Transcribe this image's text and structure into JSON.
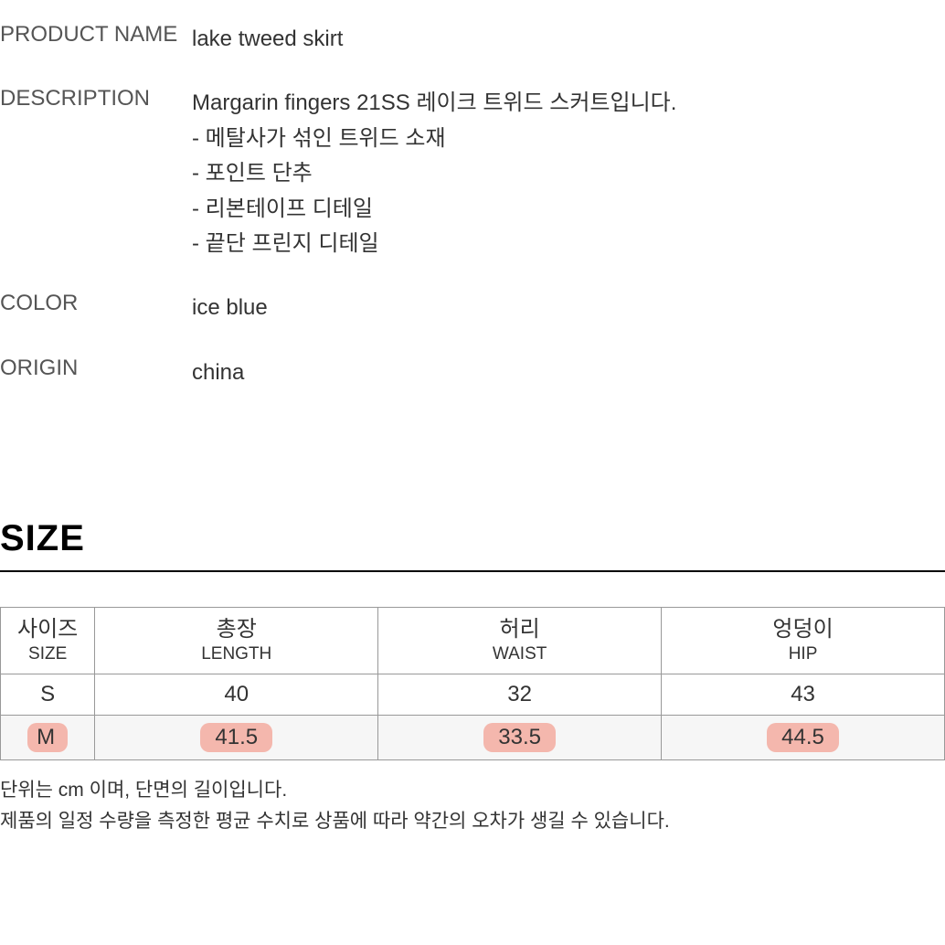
{
  "product": {
    "name_label": "PRODUCT NAME",
    "name_value": "lake tweed skirt",
    "desc_label": "DESCRIPTION",
    "desc_lines": [
      "Margarin fingers 21SS 레이크 트위드 스커트입니다.",
      "- 메탈사가 섞인 트위드 소재",
      "- 포인트 단추",
      "- 리본테이프 디테일",
      "- 끝단 프린지 디테일"
    ],
    "color_label": "COLOR",
    "color_value": "ice blue",
    "origin_label": "ORIGIN",
    "origin_value": "china"
  },
  "size_section": {
    "heading": "SIZE",
    "headers": [
      {
        "ko": "사이즈",
        "en": "SIZE"
      },
      {
        "ko": "총장",
        "en": "LENGTH"
      },
      {
        "ko": "허리",
        "en": "WAIST"
      },
      {
        "ko": "엉덩이",
        "en": "HIP"
      }
    ],
    "rows": [
      {
        "size": "S",
        "values": [
          "40",
          "32",
          "43"
        ],
        "highlighted": false
      },
      {
        "size": "M",
        "values": [
          "41.5",
          "33.5",
          "44.5"
        ],
        "highlighted": true
      }
    ],
    "notes": [
      "단위는 cm 이며, 단면의 길이입니다.",
      "제품의 일정 수량을 측정한 평균 수치로 상품에 따라 약간의 오차가 생길 수 있습니다."
    ]
  },
  "styling": {
    "highlight_color": "#f49c8e",
    "row_alt_bg": "#f6f6f6",
    "border_color": "#999999",
    "text_color": "#333333"
  }
}
